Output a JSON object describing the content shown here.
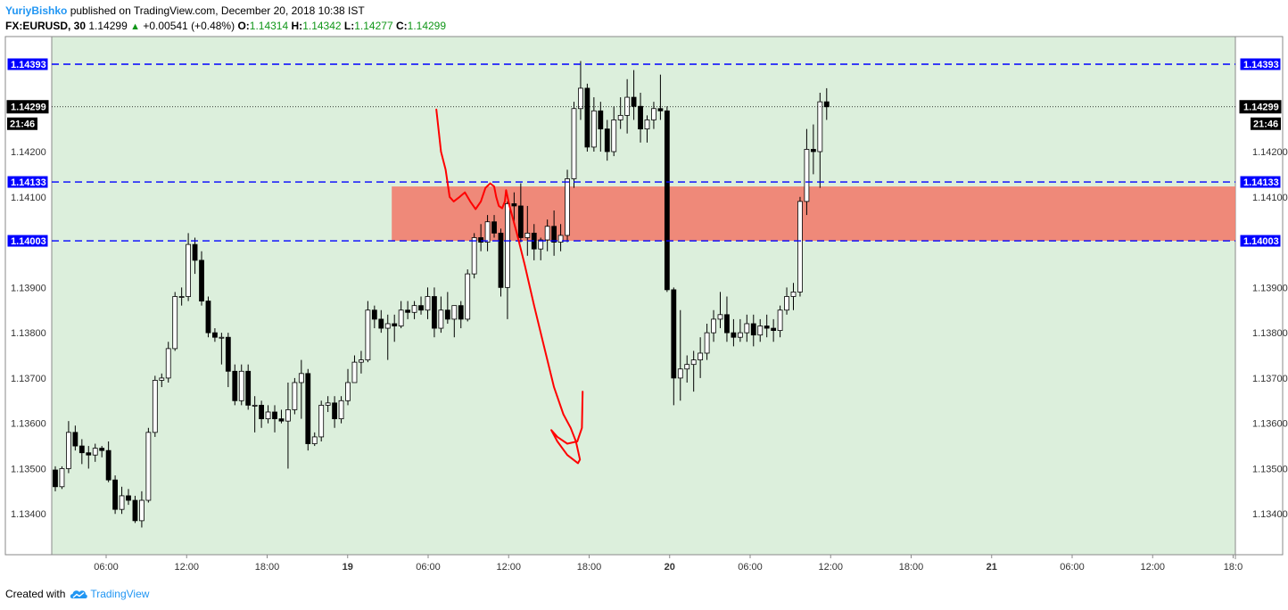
{
  "header": {
    "author": "YuriyBishko",
    "published": "published on TradingView.com, December 20, 2018 10:38 IST",
    "symbol": "FX:EURUSD, 30",
    "last": "1.14299",
    "up_arrow": "▲",
    "change": "+0.00541 (+0.48%)",
    "o_label": "O:",
    "o_value": "1.14314",
    "h_label": "H:",
    "h_value": "1.14342",
    "l_label": "L:",
    "l_value": "1.14277",
    "c_label": "C:",
    "c_value": "1.14299"
  },
  "footer": {
    "created_with": "Created with",
    "brand": "TradingView",
    "logo_icon": "tradingview-cloud-icon"
  },
  "colors": {
    "plot_bg": "#dcefdc",
    "level_line": "#0000ff",
    "zone_fill": "#f08070",
    "drawing": "#ff0000",
    "up_candle": "#ffffff",
    "down_candle": "#000000"
  },
  "chart_data": {
    "type": "candlestick",
    "ylim": [
      1.1329,
      1.145
    ],
    "y_ticks": [
      "1.13400",
      "1.13500",
      "1.13600",
      "1.13700",
      "1.13800",
      "1.13900",
      "1.14100",
      "1.14200"
    ],
    "x_ticks": [
      {
        "label": "06:00",
        "bold": false
      },
      {
        "label": "12:00",
        "bold": false
      },
      {
        "label": "18:00",
        "bold": false
      },
      {
        "label": "19",
        "bold": true
      },
      {
        "label": "06:00",
        "bold": false
      },
      {
        "label": "12:00",
        "bold": false
      },
      {
        "label": "18:00",
        "bold": false
      },
      {
        "label": "20",
        "bold": true
      },
      {
        "label": "06:00",
        "bold": false
      },
      {
        "label": "12:00",
        "bold": false
      },
      {
        "label": "18:00",
        "bold": false
      },
      {
        "label": "21",
        "bold": true
      },
      {
        "label": "06:00",
        "bold": false
      },
      {
        "label": "12:00",
        "bold": false
      },
      {
        "label": "18:0",
        "bold": false
      }
    ],
    "levels": [
      {
        "value": 1.14393,
        "label": "1.14393"
      },
      {
        "value": 1.14133,
        "label": "1.14133"
      },
      {
        "value": 1.14003,
        "label": "1.14003"
      }
    ],
    "last_price": {
      "value": 1.14299,
      "label": "1.14299",
      "countdown": "21:46"
    },
    "zone": {
      "from_bar": 51,
      "to_bar": "end",
      "low": 1.14003,
      "high": 1.14123
    },
    "drawing": {
      "type": "forecast-path",
      "points": [
        [
          57.3,
          1.14293
        ],
        [
          58.0,
          1.142
        ],
        [
          58.7,
          1.1416
        ],
        [
          59.3,
          1.141
        ],
        [
          59.9,
          1.1409
        ],
        [
          60.8,
          1.141
        ],
        [
          61.6,
          1.1411
        ],
        [
          62.4,
          1.1409
        ],
        [
          63.2,
          1.14073
        ],
        [
          64.0,
          1.1409
        ],
        [
          64.7,
          1.1412
        ],
        [
          65.4,
          1.1413
        ],
        [
          66.0,
          1.14123
        ],
        [
          66.3,
          1.141
        ],
        [
          66.7,
          1.1408
        ],
        [
          67.2,
          1.14075
        ],
        [
          67.6,
          1.1409
        ],
        [
          67.8,
          1.14115
        ],
        [
          68.3,
          1.1408
        ],
        [
          69.4,
          1.1402
        ],
        [
          70.6,
          1.1395
        ],
        [
          72.0,
          1.1386
        ],
        [
          73.5,
          1.1377
        ],
        [
          75.0,
          1.1368
        ],
        [
          76.4,
          1.1362
        ],
        [
          77.5,
          1.1359
        ],
        [
          78.3,
          1.1356
        ],
        [
          78.9,
          1.1352
        ],
        [
          78.6,
          1.13512
        ],
        [
          77.0,
          1.1353
        ],
        [
          75.5,
          1.1356
        ],
        [
          74.6,
          1.13585
        ],
        [
          75.5,
          1.1357
        ],
        [
          77.0,
          1.13555
        ],
        [
          78.5,
          1.1356
        ],
        [
          79.2,
          1.1359
        ],
        [
          79.3,
          1.1367
        ]
      ]
    },
    "candles": [
      [
        1.13497,
        1.13505,
        1.1345,
        1.1346
      ],
      [
        1.1346,
        1.13505,
        1.13455,
        1.135
      ],
      [
        1.135,
        1.13605,
        1.1349,
        1.1358
      ],
      [
        1.1358,
        1.13595,
        1.1354,
        1.1355
      ],
      [
        1.1355,
        1.13565,
        1.1351,
        1.13535
      ],
      [
        1.13535,
        1.1355,
        1.135,
        1.1353
      ],
      [
        1.1353,
        1.13555,
        1.13515,
        1.13545
      ],
      [
        1.13545,
        1.1355,
        1.13525,
        1.1354
      ],
      [
        1.1354,
        1.1356,
        1.1347,
        1.13475
      ],
      [
        1.13475,
        1.13485,
        1.134,
        1.1341
      ],
      [
        1.1341,
        1.1346,
        1.134,
        1.1344
      ],
      [
        1.1344,
        1.13455,
        1.1342,
        1.1343
      ],
      [
        1.1343,
        1.1344,
        1.1338,
        1.13385
      ],
      [
        1.13385,
        1.1345,
        1.1337,
        1.1343
      ],
      [
        1.1343,
        1.1359,
        1.13425,
        1.1358
      ],
      [
        1.1358,
        1.13705,
        1.1357,
        1.13695
      ],
      [
        1.13695,
        1.1371,
        1.1368,
        1.137
      ],
      [
        1.137,
        1.1378,
        1.1369,
        1.13765
      ],
      [
        1.13765,
        1.1389,
        1.1376,
        1.1388
      ],
      [
        1.1388,
        1.139,
        1.1386,
        1.1388
      ],
      [
        1.1388,
        1.1402,
        1.1387,
        1.13995
      ],
      [
        1.13995,
        1.1401,
        1.1393,
        1.1396
      ],
      [
        1.1396,
        1.1398,
        1.1386,
        1.1387
      ],
      [
        1.1387,
        1.1388,
        1.1379,
        1.138
      ],
      [
        1.138,
        1.1381,
        1.1378,
        1.1379
      ],
      [
        1.1379,
        1.138,
        1.1373,
        1.1379
      ],
      [
        1.1379,
        1.138,
        1.1368,
        1.13715
      ],
      [
        1.13715,
        1.1373,
        1.1364,
        1.1365
      ],
      [
        1.1365,
        1.1373,
        1.1364,
        1.13715
      ],
      [
        1.13715,
        1.1373,
        1.1363,
        1.1364
      ],
      [
        1.1364,
        1.1366,
        1.1358,
        1.1364
      ],
      [
        1.1364,
        1.1365,
        1.1359,
        1.1361
      ],
      [
        1.1361,
        1.1364,
        1.136,
        1.13625
      ],
      [
        1.13625,
        1.1364,
        1.1358,
        1.1361
      ],
      [
        1.1361,
        1.1363,
        1.136,
        1.13605
      ],
      [
        1.13605,
        1.1369,
        1.135,
        1.1363
      ],
      [
        1.1363,
        1.137,
        1.1362,
        1.1369
      ],
      [
        1.1369,
        1.1374,
        1.1361,
        1.1371
      ],
      [
        1.1371,
        1.1372,
        1.1354,
        1.13555
      ],
      [
        1.13555,
        1.1358,
        1.1355,
        1.1357
      ],
      [
        1.1357,
        1.1365,
        1.1356,
        1.1364
      ],
      [
        1.1364,
        1.1366,
        1.13625,
        1.13645
      ],
      [
        1.13645,
        1.1366,
        1.1359,
        1.1361
      ],
      [
        1.1361,
        1.1366,
        1.136,
        1.1365
      ],
      [
        1.1365,
        1.1372,
        1.1364,
        1.1369
      ],
      [
        1.1369,
        1.1375,
        1.1369,
        1.13735
      ],
      [
        1.13735,
        1.1376,
        1.1371,
        1.1374
      ],
      [
        1.1374,
        1.1387,
        1.13735,
        1.1385
      ],
      [
        1.1385,
        1.1386,
        1.1381,
        1.1383
      ],
      [
        1.1383,
        1.1385,
        1.138,
        1.1381
      ],
      [
        1.1381,
        1.1384,
        1.1374,
        1.1382
      ],
      [
        1.1382,
        1.1384,
        1.1378,
        1.13815
      ],
      [
        1.13815,
        1.1387,
        1.1381,
        1.1385
      ],
      [
        1.1385,
        1.1387,
        1.1383,
        1.13845
      ],
      [
        1.13845,
        1.1387,
        1.1383,
        1.1386
      ],
      [
        1.1386,
        1.1388,
        1.1384,
        1.1385
      ],
      [
        1.1385,
        1.139,
        1.1383,
        1.1388
      ],
      [
        1.1388,
        1.139,
        1.1379,
        1.1381
      ],
      [
        1.1381,
        1.1388,
        1.138,
        1.1385
      ],
      [
        1.1385,
        1.1389,
        1.1382,
        1.1383
      ],
      [
        1.1383,
        1.1386,
        1.1379,
        1.1386
      ],
      [
        1.1386,
        1.1387,
        1.1381,
        1.1383
      ],
      [
        1.1383,
        1.1394,
        1.13825,
        1.1393
      ],
      [
        1.1393,
        1.1402,
        1.1392,
        1.1401
      ],
      [
        1.1401,
        1.1404,
        1.1398,
        1.14
      ],
      [
        1.14,
        1.1406,
        1.1398,
        1.14045
      ],
      [
        1.14045,
        1.1406,
        1.1401,
        1.1402
      ],
      [
        1.1402,
        1.1403,
        1.1388,
        1.139
      ],
      [
        1.139,
        1.1409,
        1.1383,
        1.14085
      ],
      [
        1.14085,
        1.1411,
        1.1404,
        1.1408
      ],
      [
        1.1408,
        1.1413,
        1.14,
        1.1401
      ],
      [
        1.1401,
        1.1408,
        1.1397,
        1.1402
      ],
      [
        1.1402,
        1.1404,
        1.1396,
        1.13985
      ],
      [
        1.13985,
        1.1401,
        1.1396,
        1.14005
      ],
      [
        1.14005,
        1.1405,
        1.1398,
        1.14035
      ],
      [
        1.14035,
        1.1407,
        1.1397,
        1.14
      ],
      [
        1.14,
        1.1404,
        1.1398,
        1.14015
      ],
      [
        1.14015,
        1.1416,
        1.14,
        1.1414
      ],
      [
        1.1414,
        1.1431,
        1.1412,
        1.14295
      ],
      [
        1.14295,
        1.144,
        1.1427,
        1.1434
      ],
      [
        1.1434,
        1.1435,
        1.142,
        1.1421
      ],
      [
        1.1421,
        1.1432,
        1.142,
        1.1429
      ],
      [
        1.1429,
        1.1431,
        1.142,
        1.1425
      ],
      [
        1.1425,
        1.1427,
        1.1418,
        1.142
      ],
      [
        1.142,
        1.143,
        1.1419,
        1.1427
      ],
      [
        1.1427,
        1.1432,
        1.1425,
        1.1428
      ],
      [
        1.1428,
        1.1436,
        1.1424,
        1.1432
      ],
      [
        1.1432,
        1.1438,
        1.1427,
        1.143
      ],
      [
        1.143,
        1.1433,
        1.1422,
        1.1425
      ],
      [
        1.1425,
        1.1428,
        1.1422,
        1.1427
      ],
      [
        1.1427,
        1.1431,
        1.1425,
        1.14295
      ],
      [
        1.14295,
        1.1437,
        1.1427,
        1.1429
      ],
      [
        1.1429,
        1.143,
        1.1389,
        1.13895
      ],
      [
        1.13895,
        1.139,
        1.1364,
        1.137
      ],
      [
        1.137,
        1.1385,
        1.1365,
        1.1372
      ],
      [
        1.1372,
        1.1375,
        1.1369,
        1.1373
      ],
      [
        1.1373,
        1.1376,
        1.1367,
        1.1374
      ],
      [
        1.1374,
        1.1379,
        1.137,
        1.13755
      ],
      [
        1.13755,
        1.1382,
        1.1374,
        1.138
      ],
      [
        1.138,
        1.1385,
        1.1378,
        1.1383
      ],
      [
        1.1383,
        1.1389,
        1.1381,
        1.1384
      ],
      [
        1.1384,
        1.1388,
        1.1378,
        1.138
      ],
      [
        1.138,
        1.1383,
        1.1377,
        1.1379
      ],
      [
        1.1379,
        1.1383,
        1.1378,
        1.138
      ],
      [
        1.138,
        1.1384,
        1.1378,
        1.1382
      ],
      [
        1.1382,
        1.1384,
        1.1377,
        1.13795
      ],
      [
        1.13795,
        1.1383,
        1.1378,
        1.13815
      ],
      [
        1.13815,
        1.1384,
        1.1379,
        1.1381
      ],
      [
        1.1381,
        1.1383,
        1.1378,
        1.13805
      ],
      [
        1.13805,
        1.1386,
        1.1379,
        1.1385
      ],
      [
        1.1385,
        1.139,
        1.1384,
        1.1388
      ],
      [
        1.1388,
        1.1391,
        1.1385,
        1.1389
      ],
      [
        1.1389,
        1.141,
        1.1388,
        1.1409
      ],
      [
        1.1409,
        1.1425,
        1.1406,
        1.14205
      ],
      [
        1.14205,
        1.1426,
        1.1415,
        1.142
      ],
      [
        1.142,
        1.1433,
        1.1412,
        1.1431
      ],
      [
        1.1431,
        1.1434,
        1.1427,
        1.14299
      ]
    ]
  }
}
